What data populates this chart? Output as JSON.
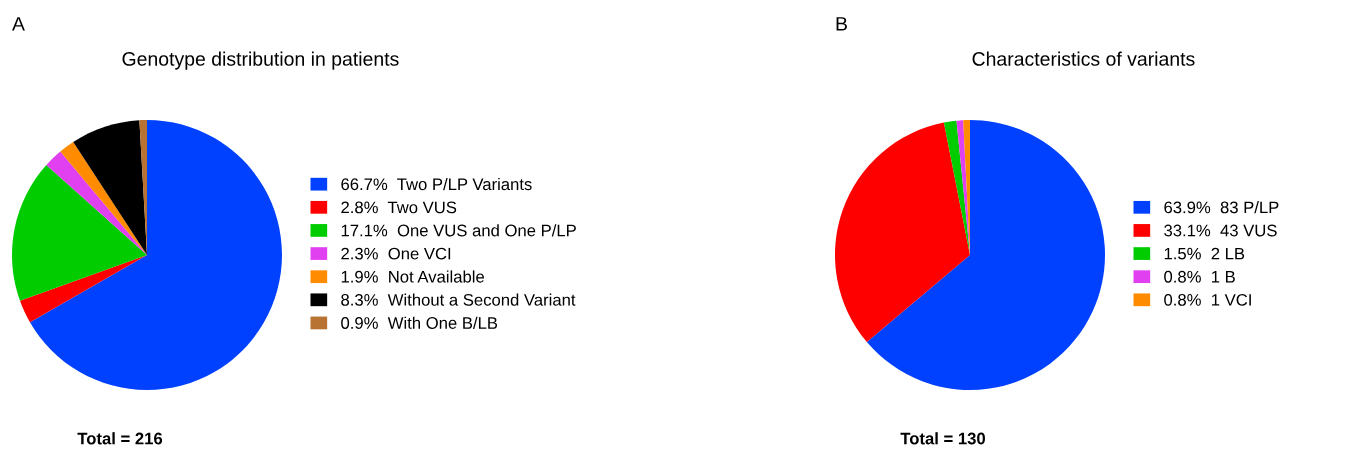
{
  "chart_data": [
    {
      "type": "pie",
      "title": "Genotype distribution in patients",
      "annotations": [
        "A",
        "Total = 216"
      ],
      "legend": "right",
      "categories": [
        "Two P/LP Variants",
        "Two VUS",
        "One VUS and One P/LP",
        "One VCI",
        "Not Available",
        "Without a Second Variant",
        "With One B/LB"
      ],
      "values": [
        66.7,
        2.8,
        17.1,
        2.3,
        1.9,
        8.3,
        0.9
      ],
      "value_labels": [
        "66.7%",
        "2.8%",
        "17.1%",
        "2.3%",
        "1.9%",
        "8.3%",
        "0.9%"
      ],
      "colors": [
        "#0040ff",
        "#ff0000",
        "#00cc00",
        "#e040f0",
        "#ff8c00",
        "#000000",
        "#b87333"
      ]
    },
    {
      "type": "pie",
      "title": "Characteristics of variants",
      "annotations": [
        "B",
        "Total = 130"
      ],
      "legend": "right",
      "categories": [
        "83 P/LP",
        "43 VUS",
        "2 LB",
        "1 B",
        "1 VCI"
      ],
      "values": [
        63.9,
        33.1,
        1.5,
        0.8,
        0.8
      ],
      "value_labels": [
        "63.9%",
        "33.1%",
        "1.5%",
        "0.8%",
        "0.8%"
      ],
      "colors": [
        "#0040ff",
        "#ff0000",
        "#00cc00",
        "#e040f0",
        "#ff8c00"
      ]
    }
  ]
}
